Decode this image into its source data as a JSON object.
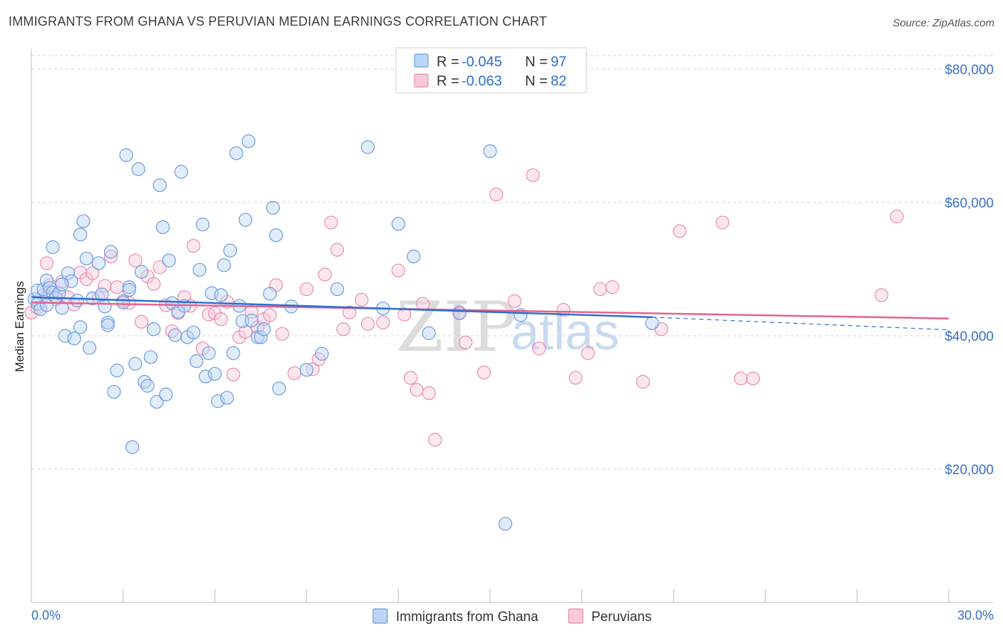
{
  "title": "IMMIGRANTS FROM GHANA VS PERUVIAN MEDIAN EARNINGS CORRELATION CHART",
  "source": "Source: ZipAtlas.com",
  "colors": {
    "ghana": "#6a9de0",
    "ghana_fill": "#bcd4f5",
    "peru": "#ea8db0",
    "peru_fill": "#f8cadb",
    "ghana_line": "#2f6fd0",
    "peru_line": "#e2648f",
    "grid": "#d6d6d6",
    "tick_label": "#3a70c8"
  },
  "legend": {
    "rows": [
      {
        "r_label": "R =",
        "r_value": "-0.045",
        "n_label": "N =",
        "n_value": "97",
        "series": "ghana"
      },
      {
        "r_label": "R =",
        "r_value": "-0.063",
        "n_label": "N =",
        "n_value": "82",
        "series": "peru"
      }
    ]
  },
  "bottom_legend": [
    "Immigrants from Ghana",
    "Peruvians"
  ],
  "watermark": {
    "zip": "ZIP",
    "atlas": "atlas"
  },
  "chart_data": {
    "type": "scatter",
    "title": "IMMIGRANTS FROM GHANA VS PERUVIAN MEDIAN EARNINGS CORRELATION CHART",
    "xlabel": "",
    "ylabel": "Median Earnings",
    "xlim": [
      0,
      30
    ],
    "ylim": [
      0,
      82000
    ],
    "x_tick_labels": [
      "0.0%",
      "30.0%"
    ],
    "y_ticks": [
      20000,
      40000,
      60000,
      80000
    ],
    "y_tick_labels": [
      "$20,000",
      "$40,000",
      "$60,000",
      "$80,000"
    ],
    "series": [
      {
        "name": "Immigrants from Ghana",
        "key": "ghana",
        "R": -0.045,
        "N": 97,
        "trend": {
          "x0": 0,
          "y0": 45800,
          "x1": 20.3,
          "y1": 42800,
          "dashed_to_x": 30,
          "dashed_to_y": 40900
        },
        "points": [
          [
            0.1,
            45500
          ],
          [
            0.2,
            46800
          ],
          [
            0.2,
            44800
          ],
          [
            0.3,
            44000
          ],
          [
            0.4,
            47000
          ],
          [
            0.5,
            48300
          ],
          [
            0.6,
            47200
          ],
          [
            0.7,
            46500
          ],
          [
            0.8,
            45800
          ],
          [
            0.9,
            46400
          ],
          [
            0.5,
            44600
          ],
          [
            0.7,
            53300
          ],
          [
            1.0,
            44200
          ],
          [
            1.1,
            40000
          ],
          [
            1.2,
            49400
          ],
          [
            1.3,
            48200
          ],
          [
            1.4,
            39600
          ],
          [
            1.0,
            47700
          ],
          [
            1.5,
            45300
          ],
          [
            1.6,
            55200
          ],
          [
            1.7,
            57200
          ],
          [
            1.8,
            51600
          ],
          [
            1.9,
            38200
          ],
          [
            2.0,
            45600
          ],
          [
            2.2,
            50900
          ],
          [
            2.3,
            46200
          ],
          [
            2.4,
            44400
          ],
          [
            2.5,
            42000
          ],
          [
            2.6,
            52600
          ],
          [
            2.7,
            31600
          ],
          [
            2.8,
            34800
          ],
          [
            3.0,
            45000
          ],
          [
            2.5,
            41600
          ],
          [
            3.1,
            67100
          ],
          [
            3.2,
            47300
          ],
          [
            3.3,
            23300
          ],
          [
            3.4,
            35800
          ],
          [
            3.5,
            65000
          ],
          [
            3.6,
            49600
          ],
          [
            3.7,
            33100
          ],
          [
            3.8,
            32500
          ],
          [
            3.9,
            36800
          ],
          [
            4.0,
            41000
          ],
          [
            4.1,
            30100
          ],
          [
            4.2,
            62600
          ],
          [
            4.3,
            56300
          ],
          [
            4.5,
            51300
          ],
          [
            4.6,
            44900
          ],
          [
            4.7,
            40100
          ],
          [
            4.8,
            43600
          ],
          [
            4.9,
            64600
          ],
          [
            5.0,
            44500
          ],
          [
            5.1,
            39800
          ],
          [
            5.3,
            40500
          ],
          [
            5.4,
            36200
          ],
          [
            5.5,
            49900
          ],
          [
            5.6,
            56700
          ],
          [
            5.7,
            33900
          ],
          [
            5.8,
            37400
          ],
          [
            5.9,
            46400
          ],
          [
            6.0,
            34300
          ],
          [
            6.1,
            30200
          ],
          [
            6.2,
            46100
          ],
          [
            6.3,
            50600
          ],
          [
            6.4,
            30700
          ],
          [
            6.5,
            52800
          ],
          [
            6.6,
            37400
          ],
          [
            6.7,
            67400
          ],
          [
            6.8,
            44500
          ],
          [
            6.9,
            42200
          ],
          [
            7.0,
            57400
          ],
          [
            7.1,
            69200
          ],
          [
            7.2,
            42300
          ],
          [
            7.4,
            39800
          ],
          [
            7.5,
            39800
          ],
          [
            7.6,
            41000
          ],
          [
            7.8,
            46300
          ],
          [
            7.9,
            59200
          ],
          [
            8.0,
            55100
          ],
          [
            8.1,
            32100
          ],
          [
            8.5,
            44400
          ],
          [
            9.0,
            34900
          ],
          [
            9.5,
            37300
          ],
          [
            10.0,
            47000
          ],
          [
            11.0,
            68300
          ],
          [
            11.5,
            44100
          ],
          [
            12.0,
            56800
          ],
          [
            12.5,
            51900
          ],
          [
            13.0,
            40400
          ],
          [
            14.0,
            43400
          ],
          [
            15.0,
            67700
          ],
          [
            15.5,
            11800
          ],
          [
            16.0,
            43100
          ],
          [
            20.3,
            41900
          ],
          [
            3.2,
            46900
          ],
          [
            4.4,
            31200
          ],
          [
            1.6,
            41300
          ]
        ]
      },
      {
        "name": "Peruvians",
        "key": "peru",
        "R": -0.063,
        "N": 82,
        "trend": {
          "x0": 0,
          "y0": 45000,
          "x1": 30,
          "y1": 42600
        },
        "points": [
          [
            0.0,
            43500
          ],
          [
            0.2,
            44200
          ],
          [
            0.4,
            46100
          ],
          [
            0.6,
            47600
          ],
          [
            0.8,
            45500
          ],
          [
            1.0,
            48100
          ],
          [
            1.2,
            45800
          ],
          [
            1.4,
            44700
          ],
          [
            0.5,
            50900
          ],
          [
            1.6,
            49500
          ],
          [
            1.8,
            48500
          ],
          [
            2.0,
            49400
          ],
          [
            2.2,
            45700
          ],
          [
            2.4,
            47500
          ],
          [
            2.6,
            51900
          ],
          [
            2.8,
            47300
          ],
          [
            3.0,
            45200
          ],
          [
            3.2,
            44900
          ],
          [
            3.4,
            51300
          ],
          [
            3.6,
            42100
          ],
          [
            3.8,
            48900
          ],
          [
            4.0,
            47800
          ],
          [
            4.2,
            50300
          ],
          [
            4.4,
            44600
          ],
          [
            4.6,
            40700
          ],
          [
            4.8,
            43400
          ],
          [
            5.0,
            45800
          ],
          [
            5.2,
            44500
          ],
          [
            5.3,
            53500
          ],
          [
            5.6,
            38100
          ],
          [
            5.8,
            43200
          ],
          [
            6.0,
            43400
          ],
          [
            6.2,
            42500
          ],
          [
            6.4,
            45100
          ],
          [
            6.6,
            34200
          ],
          [
            6.8,
            39800
          ],
          [
            7.0,
            40600
          ],
          [
            7.2,
            43600
          ],
          [
            7.4,
            41300
          ],
          [
            7.6,
            42500
          ],
          [
            7.8,
            43100
          ],
          [
            8.0,
            47600
          ],
          [
            8.2,
            40300
          ],
          [
            8.6,
            34400
          ],
          [
            9.0,
            47000
          ],
          [
            9.2,
            35000
          ],
          [
            9.4,
            36500
          ],
          [
            9.6,
            49200
          ],
          [
            9.8,
            57000
          ],
          [
            10.0,
            52900
          ],
          [
            10.2,
            41000
          ],
          [
            10.4,
            43500
          ],
          [
            10.8,
            45400
          ],
          [
            11.0,
            41800
          ],
          [
            11.5,
            42000
          ],
          [
            12.0,
            49800
          ],
          [
            12.2,
            43200
          ],
          [
            12.4,
            33700
          ],
          [
            12.6,
            31900
          ],
          [
            12.8,
            44800
          ],
          [
            13.0,
            31400
          ],
          [
            13.2,
            24400
          ],
          [
            14.0,
            43500
          ],
          [
            14.2,
            39000
          ],
          [
            14.8,
            34500
          ],
          [
            15.2,
            61200
          ],
          [
            15.8,
            45200
          ],
          [
            16.4,
            64100
          ],
          [
            16.6,
            38100
          ],
          [
            17.4,
            43900
          ],
          [
            17.8,
            33700
          ],
          [
            18.2,
            37400
          ],
          [
            18.6,
            47000
          ],
          [
            19.0,
            47300
          ],
          [
            20.0,
            33100
          ],
          [
            20.6,
            41000
          ],
          [
            21.2,
            55700
          ],
          [
            22.6,
            57000
          ],
          [
            23.2,
            33600
          ],
          [
            23.6,
            33600
          ],
          [
            27.8,
            46100
          ],
          [
            28.3,
            57900
          ]
        ]
      }
    ]
  }
}
